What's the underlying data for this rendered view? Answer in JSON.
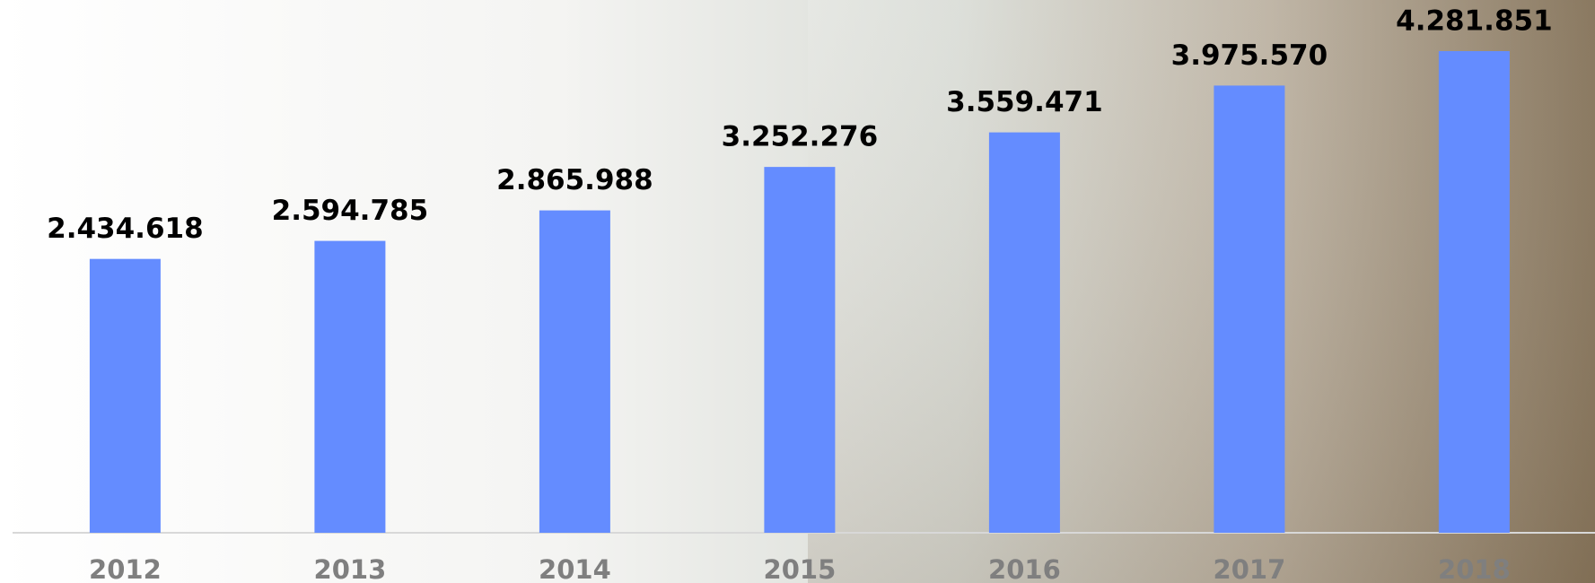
{
  "chart_data": {
    "type": "bar",
    "categories": [
      "2012",
      "2013",
      "2014",
      "2015",
      "2016",
      "2017",
      "2018"
    ],
    "values": [
      2434618,
      2594785,
      2865988,
      3252276,
      3559471,
      3975570,
      4281851
    ],
    "value_labels": [
      "2.434.618",
      "2.594.785",
      "2.865.988",
      "3.252.276",
      "3.559.471",
      "3.975.570",
      "4.281.851"
    ],
    "color": "#648cff"
  }
}
